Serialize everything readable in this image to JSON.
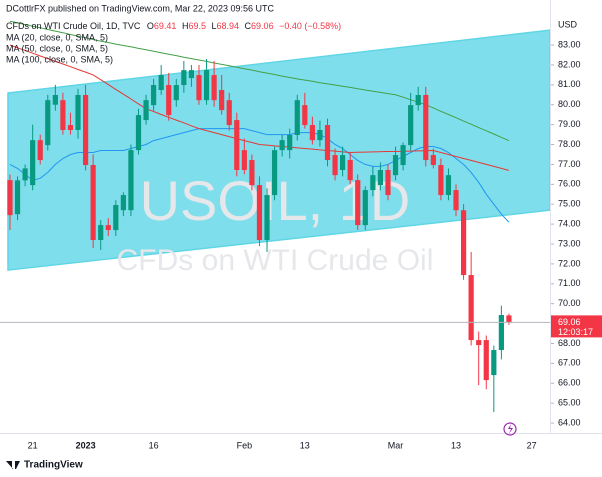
{
  "header": {
    "author": "DCottlrFX published on TradingView.com, Mar 22, 2023 09:56 UTC",
    "symbol": "CFDs on WTI Crude Oil, 1D, TVC",
    "ohlc_letters": [
      "O",
      "H",
      "L",
      "C"
    ],
    "change": "−0.40 (−0.58%)",
    "currency": "USD",
    "countdown": "12:03:17",
    "watermark": "USOIL, 1D",
    "watermark_sub": "CFDs on WTI Crude Oil",
    "footer": "TradingView"
  },
  "chart_data": {
    "type": "candlestick",
    "categories": [
      null,
      null,
      null,
      "21",
      null,
      null,
      null,
      null,
      null,
      null,
      "2023",
      null,
      null,
      null,
      null,
      null,
      null,
      null,
      null,
      "16",
      null,
      null,
      null,
      null,
      null,
      null,
      null,
      null,
      null,
      null,
      null,
      "Feb",
      null,
      null,
      null,
      null,
      null,
      null,
      null,
      "13",
      null,
      null,
      null,
      null,
      null,
      null,
      null,
      null,
      null,
      null,
      null,
      "Mar",
      null,
      null,
      null,
      null,
      null,
      null,
      null,
      "13",
      null,
      null,
      null,
      null,
      null,
      null,
      null,
      null,
      null,
      "27"
    ],
    "open": [
      76.21,
      74.5,
      76.2,
      75.96,
      78.22,
      77.97,
      80.0,
      80.23,
      78.98,
      78.73,
      80.49,
      76.97,
      73.2,
      73.95,
      73.7,
      74.7,
      74.7,
      77.72,
      79.23,
      79.98,
      80.74,
      80.99,
      80.23,
      80.99,
      81.34,
      81.49,
      80.23,
      81.49,
      80.74,
      80.23,
      79.23,
      77.72,
      77.22,
      75.96,
      73.2,
      75.46,
      77.72,
      77.72,
      78.48,
      79.98,
      78.98,
      78.22,
      78.98,
      77.47,
      76.72,
      77.22,
      76.21,
      73.95,
      75.71,
      75.96,
      76.72,
      76.46,
      76.97,
      77.97,
      79.98,
      80.49,
      77.47,
      76.97,
      75.46,
      75.71,
      74.7,
      71.44,
      68.17,
      68.17,
      66.41,
      67.67,
      69.41,
      null,
      null,
      null
    ],
    "high": [
      76.5,
      76.4,
      77.0,
      79.0,
      78.5,
      80.5,
      81.0,
      80.6,
      79.6,
      80.8,
      81.0,
      77.5,
      74.2,
      74.3,
      75.2,
      75.6,
      78.0,
      79.8,
      80.5,
      81.3,
      82.0,
      81.6,
      81.3,
      82.2,
      82.0,
      82.0,
      82.3,
      82.2,
      81.5,
      80.6,
      79.6,
      78.3,
      77.5,
      76.4,
      75.8,
      77.9,
      78.5,
      78.8,
      80.5,
      80.6,
      79.4,
      79.2,
      79.3,
      77.8,
      77.9,
      77.6,
      76.5,
      75.9,
      76.9,
      77.1,
      77.0,
      77.9,
      78.1,
      80.6,
      80.9,
      80.9,
      77.8,
      77.3,
      76.8,
      76.0,
      75.0,
      72.6,
      68.6,
      68.4,
      67.9,
      69.9,
      69.5,
      null,
      null,
      null
    ],
    "low": [
      73.7,
      74.2,
      75.9,
      75.7,
      77.0,
      77.7,
      79.7,
      78.5,
      78.5,
      78.3,
      76.7,
      72.8,
      72.7,
      73.4,
      73.4,
      74.4,
      74.4,
      77.5,
      79.0,
      79.7,
      80.5,
      79.2,
      79.9,
      80.6,
      80.9,
      80.0,
      80.0,
      79.9,
      79.5,
      78.7,
      76.4,
      76.5,
      75.7,
      72.9,
      72.6,
      75.2,
      77.4,
      77.3,
      78.2,
      78.8,
      78.0,
      77.9,
      76.9,
      76.2,
      76.4,
      76.0,
      73.7,
      73.7,
      75.4,
      75.7,
      75.2,
      76.2,
      76.7,
      77.7,
      79.7,
      76.9,
      76.8,
      75.2,
      75.2,
      74.4,
      71.2,
      67.9,
      65.9,
      65.7,
      64.55,
      67.2,
      68.94,
      null,
      null,
      null
    ],
    "close": [
      74.45,
      76.2,
      76.8,
      78.22,
      77.22,
      80.23,
      80.49,
      78.73,
      78.73,
      80.49,
      76.97,
      73.2,
      73.95,
      73.7,
      74.96,
      75.46,
      77.72,
      79.48,
      80.23,
      80.99,
      81.49,
      79.48,
      80.99,
      81.74,
      81.74,
      80.23,
      81.74,
      80.23,
      79.73,
      78.98,
      76.72,
      76.72,
      75.96,
      73.2,
      75.46,
      77.72,
      78.22,
      78.48,
      80.23,
      78.98,
      78.22,
      78.73,
      77.22,
      76.46,
      77.47,
      76.21,
      73.95,
      75.71,
      76.46,
      76.72,
      75.46,
      77.47,
      77.97,
      79.98,
      80.49,
      77.22,
      76.97,
      75.46,
      76.46,
      74.7,
      71.44,
      68.17,
      67.92,
      66.16,
      67.67,
      69.43,
      69.06,
      null,
      null,
      null
    ],
    "up_color": "#089981",
    "down_color": "#f23645",
    "moving_averages": [
      {
        "name": "MA (20, close, 0, SMA, 5)",
        "color": "#2196f3",
        "values": [
          77.0,
          76.8,
          76.5,
          76.2,
          76.3,
          76.6,
          77.0,
          77.3,
          77.5,
          77.6,
          77.6,
          77.6,
          77.7,
          77.7,
          77.7,
          77.7,
          77.8,
          77.9,
          78.0,
          78.2,
          78.3,
          78.4,
          78.5,
          78.6,
          78.7,
          78.8,
          78.8,
          78.8,
          78.8,
          78.8,
          78.8,
          78.8,
          78.7,
          78.6,
          78.5,
          78.5,
          78.5,
          78.5,
          78.6,
          78.6,
          78.6,
          78.5,
          78.3,
          78.0,
          77.8,
          77.5,
          77.2,
          77.0,
          76.9,
          76.9,
          77.0,
          77.2,
          77.4,
          77.6,
          77.8,
          77.9,
          77.9,
          77.8,
          77.6,
          77.3,
          77.0,
          76.6,
          76.1,
          75.5,
          75.0,
          74.5,
          74.1,
          null,
          null,
          null
        ]
      },
      {
        "name": "MA (50, close, 0, SMA, 5)",
        "color": "#43a047",
        "values": [
          84.2,
          84.12,
          84.03,
          83.95,
          83.87,
          83.78,
          83.7,
          83.62,
          83.53,
          83.45,
          83.37,
          83.28,
          83.2,
          83.13,
          83.05,
          82.98,
          82.91,
          82.83,
          82.76,
          82.69,
          82.61,
          82.54,
          82.47,
          82.39,
          82.32,
          82.25,
          82.18,
          82.1,
          82.03,
          81.96,
          81.88,
          81.81,
          81.74,
          81.66,
          81.59,
          81.52,
          81.44,
          81.37,
          81.3,
          81.24,
          81.18,
          81.11,
          81.05,
          80.99,
          80.93,
          80.87,
          80.8,
          80.74,
          80.68,
          80.62,
          80.56,
          80.5,
          80.38,
          80.25,
          80.13,
          80.0,
          79.84,
          79.67,
          79.51,
          79.35,
          79.18,
          79.02,
          78.85,
          78.69,
          78.53,
          78.36,
          78.2,
          null,
          null,
          null
        ]
      },
      {
        "name": "MA (100, close, 0, SMA, 5)",
        "color": "#e53935",
        "values": [
          83.0,
          82.86,
          82.73,
          82.59,
          82.45,
          82.32,
          82.18,
          82.05,
          81.91,
          81.77,
          81.64,
          81.5,
          81.26,
          81.01,
          80.77,
          80.53,
          80.29,
          80.04,
          79.8,
          79.66,
          79.51,
          79.37,
          79.23,
          79.09,
          78.94,
          78.8,
          78.7,
          78.6,
          78.5,
          78.4,
          78.3,
          78.2,
          78.1,
          78.0,
          77.97,
          77.93,
          77.9,
          77.87,
          77.83,
          77.8,
          77.77,
          77.73,
          77.7,
          77.67,
          77.63,
          77.6,
          77.61,
          77.62,
          77.63,
          77.64,
          77.65,
          77.65,
          77.66,
          77.67,
          77.68,
          77.69,
          77.7,
          77.6,
          77.5,
          77.4,
          77.3,
          77.2,
          77.1,
          77.0,
          76.9,
          76.8,
          76.7,
          null,
          null,
          null
        ]
      }
    ],
    "channel": {
      "upper": [
        80.59,
        83.75
      ],
      "lower": [
        71.69,
        74.7
      ],
      "color": "#5fd6e6"
    },
    "ylim": [
      63.5,
      84.36
    ],
    "yticks": [
      {
        "value": 64,
        "label": "64.00"
      },
      {
        "value": 65,
        "label": "65.00"
      },
      {
        "value": 66,
        "label": "66.00"
      },
      {
        "value": 67,
        "label": "67.00"
      },
      {
        "value": 68,
        "label": "68.00"
      },
      {
        "value": 69,
        "label": "69.00"
      },
      {
        "value": 70,
        "label": "70.00"
      },
      {
        "value": 71,
        "label": "71.00"
      },
      {
        "value": 72,
        "label": "72.00"
      },
      {
        "value": 73,
        "label": "73.00"
      },
      {
        "value": 74,
        "label": "74.00"
      },
      {
        "value": 75,
        "label": "75.00"
      },
      {
        "value": 76,
        "label": "76.00"
      },
      {
        "value": 77,
        "label": "77.00"
      },
      {
        "value": 78,
        "label": "78.00"
      },
      {
        "value": 79,
        "label": "79.00"
      },
      {
        "value": 80,
        "label": "80.00"
      },
      {
        "value": 81,
        "label": "81.00"
      },
      {
        "value": 82,
        "label": "82.00"
      },
      {
        "value": 83,
        "label": "83.00"
      }
    ],
    "grid": false
  }
}
